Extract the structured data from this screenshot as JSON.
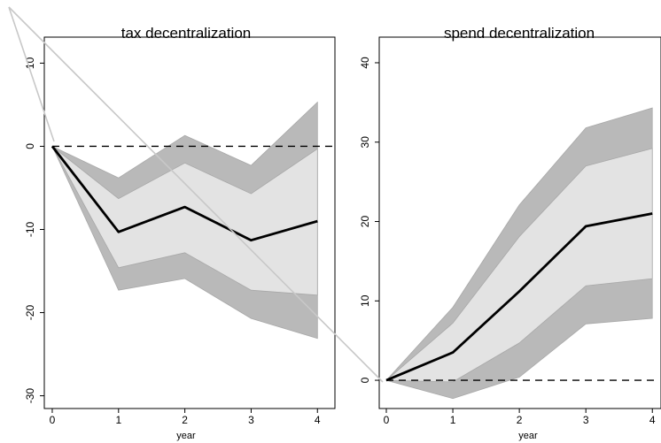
{
  "chart_data": [
    {
      "type": "line",
      "title": "tax decentralization",
      "xlabel": "year",
      "ylabel": "",
      "x": [
        0,
        1,
        2,
        3,
        4
      ],
      "x_ticks": [
        "0",
        "1",
        "2",
        "3",
        "4"
      ],
      "xlim": [
        -0.2,
        4.05
      ],
      "ylim": [
        -31,
        11
      ],
      "y_ticks": [
        10,
        0,
        -10,
        -20,
        -30
      ],
      "y_tick_labels": [
        "10",
        "0",
        "-10",
        "-20",
        "-30"
      ],
      "zero_line": 0,
      "series": [
        {
          "role": "point-estimate",
          "values": [
            0,
            -10.3,
            -7.3,
            -11.3,
            -9.0
          ]
        },
        {
          "role": "inner-band",
          "lower": [
            0,
            -14.6,
            -12.8,
            -17.3,
            -17.9
          ],
          "upper": [
            0,
            -6.3,
            -2.0,
            -5.7,
            -0.3
          ]
        },
        {
          "role": "outer-band",
          "lower": [
            0,
            -17.3,
            -15.9,
            -20.7,
            -23.1
          ],
          "upper": [
            0,
            -3.8,
            1.3,
            -2.3,
            5.3
          ]
        }
      ],
      "grid": false,
      "legend": "none"
    },
    {
      "type": "line",
      "title": "spend decentralization",
      "xlabel": "year",
      "ylabel": "",
      "x": [
        0,
        1,
        2,
        3,
        4
      ],
      "x_ticks": [
        "0",
        "1",
        "2",
        "3",
        "4"
      ],
      "xlim": [
        -0.08,
        4.05
      ],
      "ylim": [
        -3,
        41
      ],
      "y_ticks": [
        0,
        10,
        20,
        30,
        40
      ],
      "y_tick_labels": [
        "0",
        "10",
        "20",
        "30",
        "40"
      ],
      "zero_line": 0,
      "series": [
        {
          "role": "point-estimate",
          "values": [
            0,
            3.5,
            11.2,
            19.4,
            21.0
          ]
        },
        {
          "role": "inner-band",
          "lower": [
            0,
            -0.2,
            4.7,
            11.9,
            12.8
          ],
          "upper": [
            0,
            7.2,
            18.1,
            27.0,
            29.2
          ]
        },
        {
          "role": "outer-band",
          "lower": [
            0,
            -2.3,
            0.4,
            7.1,
            7.8
          ],
          "upper": [
            0,
            9.2,
            22.1,
            31.8,
            34.3
          ]
        }
      ],
      "grid": false,
      "legend": "none"
    }
  ],
  "colors": {
    "outer_band": "#b9b9b9",
    "inner_band": "#e3e3e3",
    "band_edge": "#a8a8a8",
    "estimate_line": "#000000",
    "zero_line": "#000000",
    "overlay_line": "#c8c8c8"
  }
}
